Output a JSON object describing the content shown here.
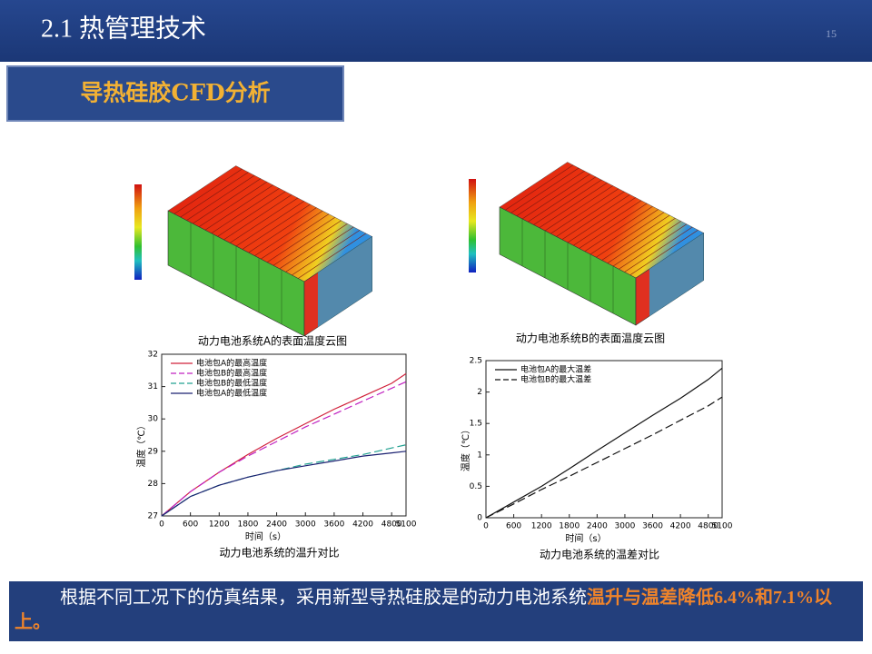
{
  "header": {
    "title": "2.1 热管理技术",
    "page_number": "15"
  },
  "section": "导热硅胶CFD分析",
  "images": [
    {
      "caption": "动力电池系统A的表面温度云图"
    },
    {
      "caption": "动力电池系统B的表面温度云图"
    }
  ],
  "chart_data": [
    {
      "type": "line",
      "title": "动力电池系统的温升对比",
      "x_label": "时间（s）",
      "y_label": "温度（℃）",
      "x": [
        0,
        600,
        1200,
        1800,
        2400,
        3000,
        3600,
        4200,
        4800,
        5100
      ],
      "xlim": [
        0,
        5100
      ],
      "xticks": [
        0,
        600,
        1200,
        1800,
        2400,
        3000,
        3600,
        4200,
        4800,
        5100
      ],
      "ylim": [
        27,
        32
      ],
      "yticks": [
        27,
        28,
        29,
        30,
        31,
        32
      ],
      "legend": "upper left",
      "series": [
        {
          "name": "电池包A的最高温度",
          "color": "#d0203a",
          "dash": false,
          "values": [
            27,
            27.75,
            28.35,
            28.9,
            29.4,
            29.85,
            30.3,
            30.7,
            31.1,
            31.4
          ]
        },
        {
          "name": "电池包B的最高温度",
          "color": "#c020c0",
          "dash": true,
          "values": [
            27,
            27.75,
            28.35,
            28.85,
            29.3,
            29.75,
            30.15,
            30.55,
            30.95,
            31.15
          ]
        },
        {
          "name": "电池包B的最低温度",
          "color": "#20a090",
          "dash": true,
          "values": [
            27,
            27.6,
            27.95,
            28.2,
            28.4,
            28.6,
            28.75,
            28.9,
            29.1,
            29.2
          ]
        },
        {
          "name": "电池包A的最低温度",
          "color": "#1a2070",
          "dash": false,
          "values": [
            27,
            27.6,
            27.95,
            28.2,
            28.4,
            28.55,
            28.7,
            28.85,
            28.95,
            29.0
          ]
        }
      ]
    },
    {
      "type": "line",
      "title": "动力电池系统的温差对比",
      "x_label": "时间（s）",
      "y_label": "温度（℃）",
      "x": [
        0,
        600,
        1200,
        1800,
        2400,
        3000,
        3600,
        4200,
        4800,
        5100
      ],
      "xlim": [
        0,
        5100
      ],
      "xticks": [
        0,
        600,
        1200,
        1800,
        2400,
        3000,
        3600,
        4200,
        4800,
        5100
      ],
      "ylim": [
        0,
        2.5
      ],
      "yticks": [
        0,
        0.5,
        1,
        1.5,
        2,
        2.5
      ],
      "legend": "upper left",
      "series": [
        {
          "name": "电池包A的最大温差",
          "color": "#111111",
          "dash": false,
          "values": [
            0,
            0.25,
            0.5,
            0.78,
            1.07,
            1.35,
            1.63,
            1.9,
            2.2,
            2.38
          ]
        },
        {
          "name": "电池包B的最大温差",
          "color": "#111111",
          "dash": true,
          "values": [
            0,
            0.22,
            0.45,
            0.66,
            0.88,
            1.1,
            1.32,
            1.55,
            1.78,
            1.92
          ]
        }
      ]
    }
  ],
  "conclusion": {
    "text": "根据不同工况下的仿真结果，采用新型导热硅胶是的动力电池系统",
    "highlight": "温升与温差降低6.4%和7.1%以上。"
  }
}
